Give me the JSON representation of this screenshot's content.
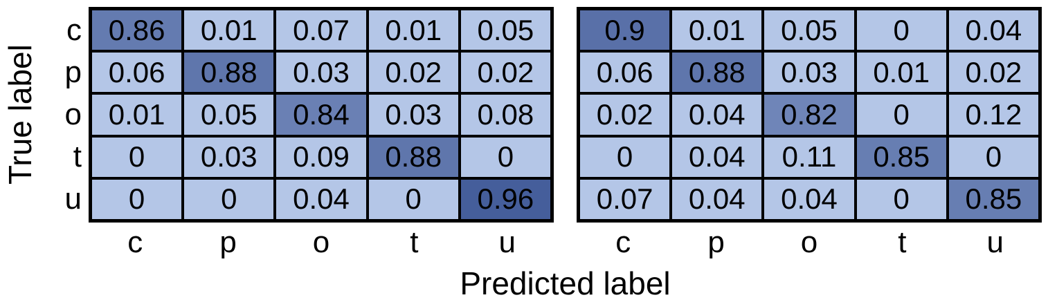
{
  "figure": {
    "ylabel": "True label",
    "xlabel": "Predicted label"
  },
  "colormap": {
    "low": "#b4c6e7",
    "high": "#375091",
    "gamma": 3,
    "grid_color": "#000000",
    "text_color": "#000000"
  },
  "chart_data": [
    {
      "type": "heatmap",
      "name": "confusion-matrix-left",
      "title": "",
      "xlabel": "Predicted label",
      "ylabel": "True label",
      "row_labels": [
        "c",
        "p",
        "o",
        "t",
        "u"
      ],
      "col_labels": [
        "c",
        "p",
        "o",
        "t",
        "u"
      ],
      "cells": [
        [
          "0.86",
          "0.01",
          "0.07",
          "0.01",
          "0.05"
        ],
        [
          "0.06",
          "0.88",
          "0.03",
          "0.02",
          "0.02"
        ],
        [
          "0.01",
          "0.05",
          "0.84",
          "0.03",
          "0.08"
        ],
        [
          "0",
          "0.03",
          "0.09",
          "0.88",
          "0"
        ],
        [
          "0",
          "0",
          "0.04",
          "0",
          "0.96"
        ]
      ]
    },
    {
      "type": "heatmap",
      "name": "confusion-matrix-right",
      "title": "",
      "xlabel": "Predicted label",
      "ylabel": "True label",
      "row_labels": [
        "c",
        "p",
        "o",
        "t",
        "u"
      ],
      "col_labels": [
        "c",
        "p",
        "o",
        "t",
        "u"
      ],
      "cells": [
        [
          "0.9",
          "0.01",
          "0.05",
          "0",
          "0.04"
        ],
        [
          "0.06",
          "0.88",
          "0.03",
          "0.01",
          "0.02"
        ],
        [
          "0.02",
          "0.04",
          "0.82",
          "0",
          "0.12"
        ],
        [
          "0",
          "0.04",
          "0.11",
          "0.85",
          "0"
        ],
        [
          "0.07",
          "0.04",
          "0.04",
          "0",
          "0.85"
        ]
      ]
    }
  ]
}
